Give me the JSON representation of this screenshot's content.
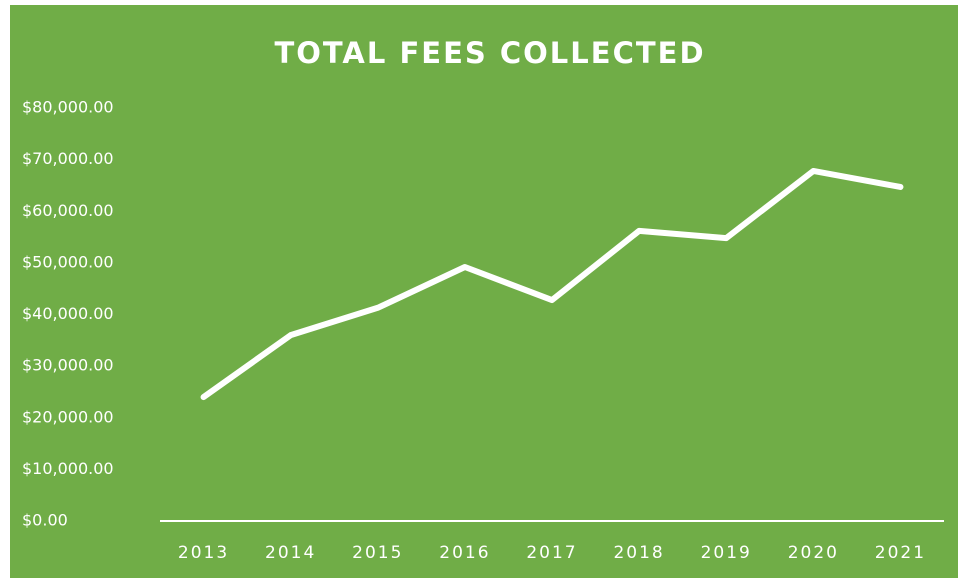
{
  "chart_data": {
    "type": "line",
    "title": "TOTAL FEES COLLECTED",
    "categories": [
      "2013",
      "2014",
      "2015",
      "2016",
      "2017",
      "2018",
      "2019",
      "2020",
      "2021"
    ],
    "series": [
      {
        "name": "Total Fees",
        "color": "#ffffff",
        "values": [
          24000,
          36000,
          41300,
          49200,
          42800,
          56200,
          54800,
          67800,
          64700
        ]
      }
    ],
    "ylim": [
      0,
      80000
    ],
    "yticks": [
      {
        "value": 0,
        "label": "$0.00"
      },
      {
        "value": 10000,
        "label": "$10,000.00"
      },
      {
        "value": 20000,
        "label": "$20,000.00"
      },
      {
        "value": 30000,
        "label": "$30,000.00"
      },
      {
        "value": 40000,
        "label": "$40,000.00"
      },
      {
        "value": 50000,
        "label": "$50,000.00"
      },
      {
        "value": 60000,
        "label": "$60,000.00"
      },
      {
        "value": 70000,
        "label": "$70,000.00"
      },
      {
        "value": 80000,
        "label": "$80,000.00"
      }
    ],
    "background": "#70ad47",
    "grid": false,
    "drop_lines": true
  }
}
